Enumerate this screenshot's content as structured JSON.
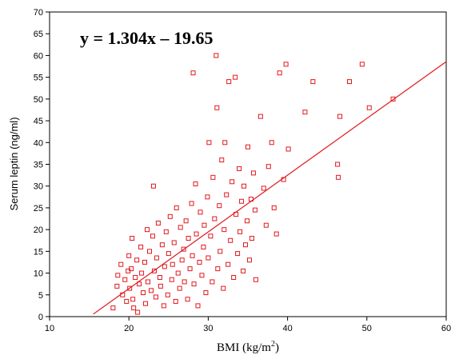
{
  "chart_data": {
    "type": "scatter",
    "title": "",
    "xlabel": "BMI (kg/m",
    "xlabel_sup": "2",
    "xlabel_suffix": ")",
    "ylabel": "Serum leptin (ng/ml)",
    "annotation": "y = 1.304x – 19.65",
    "xlim": [
      10,
      60
    ],
    "ylim": [
      0,
      70
    ],
    "xticks": [
      10,
      20,
      30,
      40,
      50,
      60
    ],
    "yticks": [
      0,
      5,
      10,
      15,
      20,
      25,
      30,
      35,
      40,
      45,
      50,
      55,
      60,
      65,
      70
    ],
    "grid": false,
    "marker": "open-square",
    "color": "#e0191e",
    "regression": {
      "slope": 1.304,
      "intercept": -19.65,
      "x_range": [
        15.5,
        60
      ]
    },
    "points": [
      [
        18.0,
        2.0
      ],
      [
        18.5,
        7.0
      ],
      [
        18.6,
        9.5
      ],
      [
        19.0,
        12.0
      ],
      [
        19.2,
        5.0
      ],
      [
        19.5,
        8.5
      ],
      [
        19.7,
        3.5
      ],
      [
        19.9,
        10.5
      ],
      [
        20.0,
        14.0
      ],
      [
        20.1,
        6.5
      ],
      [
        20.3,
        11.0
      ],
      [
        20.4,
        18.0
      ],
      [
        20.5,
        4.0
      ],
      [
        20.6,
        2.0
      ],
      [
        20.8,
        9.0
      ],
      [
        21.0,
        13.0
      ],
      [
        21.1,
        1.0
      ],
      [
        21.3,
        7.5
      ],
      [
        21.5,
        16.0
      ],
      [
        21.6,
        10.0
      ],
      [
        21.8,
        5.5
      ],
      [
        22.0,
        12.5
      ],
      [
        22.1,
        3.0
      ],
      [
        22.3,
        20.0
      ],
      [
        22.4,
        8.0
      ],
      [
        22.6,
        15.0
      ],
      [
        22.8,
        6.0
      ],
      [
        23.0,
        18.5
      ],
      [
        23.1,
        30.0
      ],
      [
        23.2,
        10.5
      ],
      [
        23.4,
        4.5
      ],
      [
        23.5,
        13.5
      ],
      [
        23.7,
        21.5
      ],
      [
        23.9,
        9.0
      ],
      [
        24.0,
        7.0
      ],
      [
        24.2,
        16.5
      ],
      [
        24.4,
        2.5
      ],
      [
        24.5,
        11.5
      ],
      [
        24.7,
        19.5
      ],
      [
        24.9,
        5.0
      ],
      [
        25.0,
        14.5
      ],
      [
        25.2,
        23.0
      ],
      [
        25.4,
        8.5
      ],
      [
        25.5,
        12.0
      ],
      [
        25.7,
        17.0
      ],
      [
        25.9,
        3.5
      ],
      [
        26.0,
        25.0
      ],
      [
        26.2,
        10.0
      ],
      [
        26.4,
        6.5
      ],
      [
        26.5,
        20.5
      ],
      [
        26.7,
        13.0
      ],
      [
        26.9,
        15.5
      ],
      [
        27.0,
        8.0
      ],
      [
        27.2,
        22.0
      ],
      [
        27.4,
        4.0
      ],
      [
        27.5,
        18.0
      ],
      [
        27.7,
        11.0
      ],
      [
        27.9,
        26.0
      ],
      [
        28.0,
        14.0
      ],
      [
        28.1,
        56.0
      ],
      [
        28.2,
        7.5
      ],
      [
        28.4,
        30.5
      ],
      [
        28.5,
        19.0
      ],
      [
        28.7,
        2.5
      ],
      [
        28.9,
        12.5
      ],
      [
        29.0,
        24.0
      ],
      [
        29.2,
        9.5
      ],
      [
        29.4,
        16.0
      ],
      [
        29.5,
        21.0
      ],
      [
        29.7,
        5.5
      ],
      [
        29.9,
        27.5
      ],
      [
        30.0,
        13.5
      ],
      [
        30.1,
        40.0
      ],
      [
        30.3,
        18.5
      ],
      [
        30.5,
        8.0
      ],
      [
        30.6,
        32.0
      ],
      [
        30.8,
        22.5
      ],
      [
        31.0,
        60.0
      ],
      [
        31.1,
        48.0
      ],
      [
        31.2,
        11.0
      ],
      [
        31.4,
        25.5
      ],
      [
        31.5,
        15.0
      ],
      [
        31.7,
        36.0
      ],
      [
        31.9,
        6.5
      ],
      [
        32.0,
        20.0
      ],
      [
        32.1,
        40.0
      ],
      [
        32.3,
        28.0
      ],
      [
        32.5,
        12.0
      ],
      [
        32.6,
        54.0
      ],
      [
        32.8,
        17.5
      ],
      [
        33.0,
        31.0
      ],
      [
        33.2,
        9.0
      ],
      [
        33.4,
        55.0
      ],
      [
        33.5,
        23.5
      ],
      [
        33.7,
        14.5
      ],
      [
        33.9,
        34.0
      ],
      [
        34.0,
        19.5
      ],
      [
        34.2,
        26.5
      ],
      [
        34.4,
        10.5
      ],
      [
        34.5,
        30.0
      ],
      [
        34.7,
        16.5
      ],
      [
        34.9,
        22.0
      ],
      [
        35.0,
        39.0
      ],
      [
        35.2,
        13.0
      ],
      [
        35.4,
        27.0
      ],
      [
        35.5,
        18.0
      ],
      [
        35.7,
        33.0
      ],
      [
        35.9,
        24.5
      ],
      [
        36.0,
        8.5
      ],
      [
        36.6,
        46.0
      ],
      [
        37.0,
        29.5
      ],
      [
        37.3,
        21.0
      ],
      [
        37.6,
        34.5
      ],
      [
        38.0,
        40.0
      ],
      [
        38.3,
        25.0
      ],
      [
        38.6,
        19.0
      ],
      [
        39.0,
        56.0
      ],
      [
        39.5,
        31.5
      ],
      [
        39.8,
        58.0
      ],
      [
        40.1,
        38.5
      ],
      [
        42.2,
        47.0
      ],
      [
        43.2,
        54.0
      ],
      [
        46.3,
        35.0
      ],
      [
        46.4,
        32.0
      ],
      [
        46.6,
        46.0
      ],
      [
        47.8,
        54.0
      ],
      [
        49.4,
        58.0
      ],
      [
        50.3,
        48.0
      ],
      [
        53.3,
        50.0
      ]
    ]
  }
}
